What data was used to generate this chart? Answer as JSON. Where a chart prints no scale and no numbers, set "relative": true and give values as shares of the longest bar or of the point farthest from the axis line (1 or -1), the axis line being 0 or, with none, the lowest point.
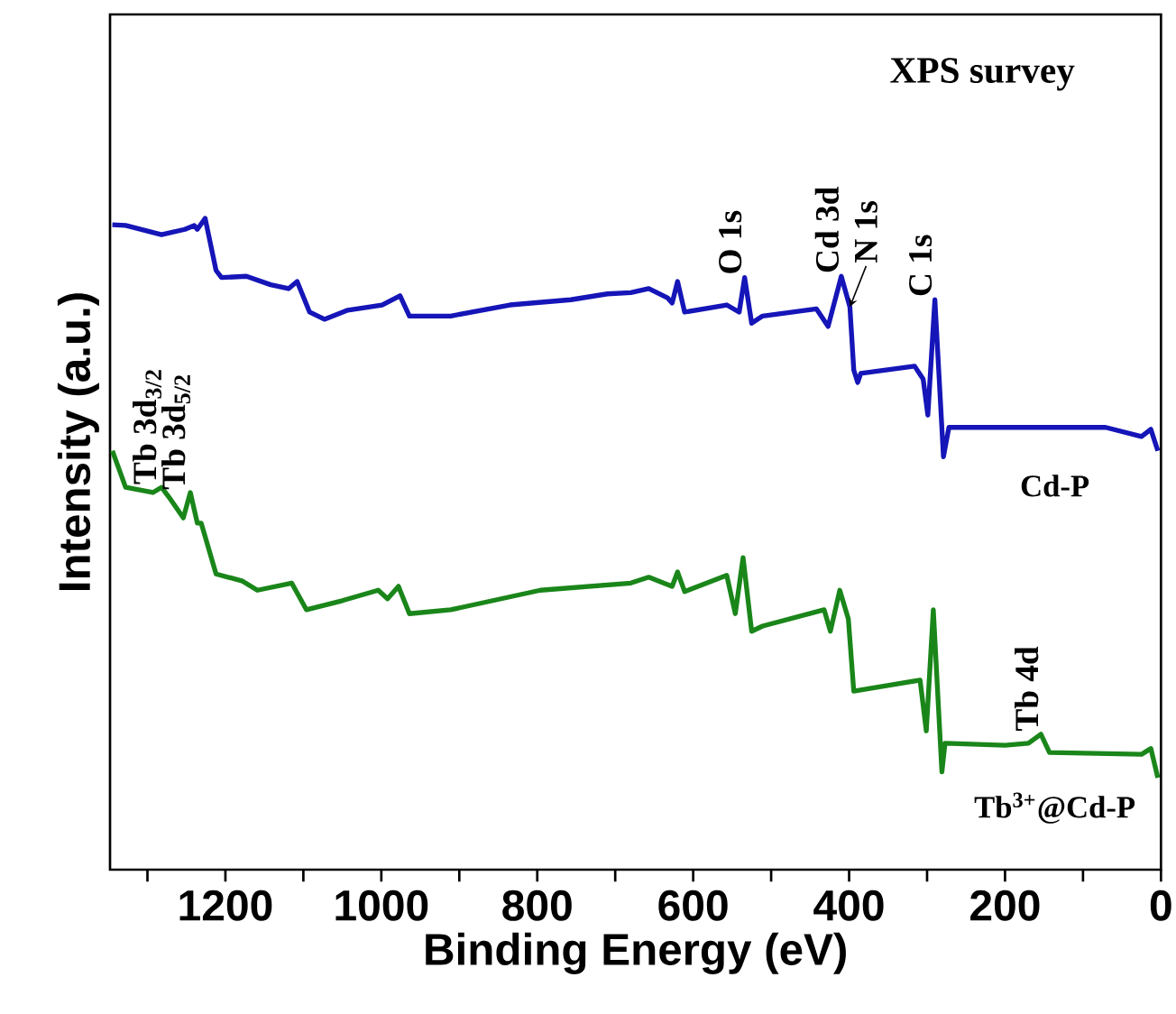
{
  "chart_data": {
    "type": "line",
    "relative": true,
    "title": "XPS survey",
    "xlabel": "Binding Energy (eV)",
    "ylabel": "Intensity (a.u.)",
    "xlim": [
      1348,
      0
    ],
    "xticks": [
      {
        "value": 1300,
        "label": null
      },
      1200,
      {
        "value": 1100,
        "label": null
      },
      1000,
      {
        "value": 900,
        "label": null
      },
      800,
      {
        "value": 700,
        "label": null
      },
      600,
      {
        "value": 500,
        "label": null
      },
      400,
      {
        "value": 300,
        "label": null
      },
      200,
      {
        "value": 100,
        "label": null
      },
      0
    ],
    "tick_labels": "x",
    "grid": false,
    "legend": false,
    "marker": "none",
    "line_style": "solid",
    "series": [
      {
        "name": "Cd-P",
        "color": "#1515b8",
        "x": [
          1345,
          1328,
          1282,
          1252,
          1240,
          1236,
          1226,
          1212,
          1205,
          1173,
          1142,
          1119,
          1108,
          1092,
          1073,
          1043,
          999,
          976,
          964,
          911,
          835,
          757,
          710,
          680,
          657,
          633,
          627,
          620,
          611,
          557,
          541,
          534,
          525,
          511,
          442,
          427,
          410,
          399,
          394,
          389,
          385,
          316,
          305,
          299,
          290,
          279,
          272,
          200,
          71,
          25,
          13,
          4
        ],
        "values": [
          0.99,
          0.989,
          0.975,
          0.983,
          0.989,
          0.983,
          1.0,
          0.92,
          0.909,
          0.911,
          0.898,
          0.892,
          0.903,
          0.856,
          0.845,
          0.859,
          0.867,
          0.881,
          0.85,
          0.85,
          0.867,
          0.875,
          0.884,
          0.886,
          0.892,
          0.878,
          0.87,
          0.903,
          0.856,
          0.867,
          0.856,
          0.909,
          0.839,
          0.85,
          0.861,
          0.834,
          0.911,
          0.864,
          0.767,
          0.748,
          0.762,
          0.773,
          0.753,
          0.698,
          0.875,
          0.634,
          0.679,
          0.679,
          0.679,
          0.665,
          0.676,
          0.643
        ]
      },
      {
        "name": "Tb$^{3+}$@Cd-P",
        "color": "#1a861a",
        "x": [
          1345,
          1328,
          1293,
          1282,
          1270,
          1254,
          1245,
          1236,
          1231,
          1212,
          1178,
          1159,
          1115,
          1096,
          1050,
          1004,
          992,
          978,
          964,
          911,
          796,
          680,
          657,
          627,
          620,
          611,
          557,
          546,
          536,
          525,
          511,
          432,
          424,
          412,
          401,
          394,
          349,
          309,
          301,
          292,
          281,
          277,
          200,
          170,
          154,
          143,
          25,
          13,
          4
        ],
        "values": [
          0.643,
          0.587,
          0.579,
          0.587,
          0.568,
          0.54,
          0.579,
          0.532,
          0.532,
          0.454,
          0.443,
          0.429,
          0.44,
          0.399,
          0.413,
          0.429,
          0.416,
          0.435,
          0.393,
          0.399,
          0.429,
          0.44,
          0.449,
          0.435,
          0.457,
          0.427,
          0.452,
          0.393,
          0.479,
          0.366,
          0.374,
          0.399,
          0.366,
          0.429,
          0.385,
          0.274,
          0.283,
          0.291,
          0.213,
          0.399,
          0.15,
          0.194,
          0.191,
          0.194,
          0.208,
          0.18,
          0.177,
          0.186,
          0.141
        ]
      }
    ],
    "annotations": [
      {
        "text": "O 1s",
        "x": 534,
        "y": 0.909
      },
      {
        "text": "Cd 3d",
        "x": 410,
        "y": 0.911
      },
      {
        "text": "N 1s",
        "x": 399,
        "y": 0.864
      },
      {
        "text": "C 1s",
        "x": 290,
        "y": 0.875
      },
      {
        "text": "Tb 3d$_{3/2}$",
        "x": 1282,
        "y": 0.587
      },
      {
        "text": "Tb 3d$_{5/2}$",
        "x": 1245,
        "y": 0.579
      },
      {
        "text": "Tb 4d",
        "x": 154,
        "y": 0.208
      }
    ]
  }
}
